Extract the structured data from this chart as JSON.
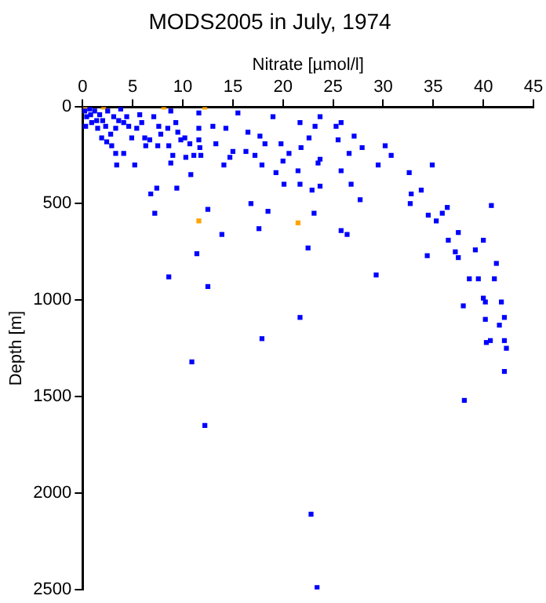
{
  "chart_data": {
    "type": "scatter",
    "title": "MODS2005 in July, 1974",
    "xlabel": "Nitrate [µmol/l]",
    "ylabel": "Depth [m]",
    "xlim": [
      0,
      45
    ],
    "xticks": [
      0,
      5,
      10,
      15,
      20,
      25,
      30,
      35,
      40,
      45
    ],
    "ylim": [
      2500,
      0
    ],
    "yticks": [
      0,
      500,
      1000,
      1500,
      2000,
      2500
    ],
    "grid": false,
    "legend": false,
    "marker": "square",
    "series": [
      {
        "color": "#0000ff",
        "x": [
          0.2,
          0.4,
          0.7,
          0.9,
          1.2,
          1.5,
          1.7,
          2.0,
          2.3,
          2.5,
          2.8,
          3.1,
          3.3,
          3.6,
          3.8,
          4.1,
          4.4,
          4.6,
          0.3,
          0.8,
          1.4,
          1.9,
          2.4,
          2.9,
          3.3,
          3.4,
          4.1,
          5.2,
          4.9,
          5.4,
          5.7,
          5.9,
          6.2,
          6.3,
          6.7,
          7.1,
          7.6,
          7.5,
          7.8,
          8.5,
          8.8,
          8.6,
          8.8,
          9.0,
          9.3,
          9.5,
          9.8,
          10.2,
          10.3,
          10.7,
          10.8,
          11.1,
          11.6,
          11.6,
          11.7,
          11.8,
          11.6,
          13.0,
          13.3,
          14.1,
          14.3,
          14.7,
          15.0,
          15.5,
          16.3,
          16.5,
          17.2,
          17.7,
          17.9,
          18.2,
          19.0,
          19.3,
          19.8,
          20.1,
          20.0,
          20.6,
          21.7,
          21.8,
          21.7,
          21.5,
          22.6,
          22.9,
          6.8,
          7.4,
          9.4,
          7.2,
          12.5,
          13.9,
          16.8,
          18.5,
          17.6,
          11.4,
          8.6,
          12.5,
          22.5,
          21.7,
          17.9,
          23.2,
          23.7,
          25.3,
          25.8,
          25.5,
          27.1,
          27.9,
          30.2,
          30.8,
          23.5,
          23.7,
          25.8,
          26.6,
          29.5,
          32.6,
          34.9,
          23.7,
          26.8,
          27.7,
          32.8,
          33.8,
          32.7,
          23.1,
          25.8,
          26.4,
          36.4,
          35.9,
          34.5,
          35.3,
          37.5,
          40.8,
          36.5,
          40.0,
          37.2,
          37.5,
          39.2,
          34.4,
          41.3,
          29.3,
          38.6,
          39.5,
          41.1,
          38.0,
          40.0,
          40.2,
          41.8,
          40.2,
          42.1,
          41.6,
          10.9,
          12.2,
          22.8,
          40.3,
          40.7,
          42.1,
          42.3,
          42.1,
          38.1,
          23.4
        ],
        "values": [
          20,
          50,
          10,
          80,
          20,
          110,
          40,
          70,
          100,
          20,
          140,
          50,
          110,
          70,
          10,
          80,
          50,
          100,
          100,
          40,
          70,
          160,
          180,
          200,
          240,
          300,
          240,
          300,
          160,
          110,
          40,
          80,
          160,
          200,
          170,
          50,
          100,
          200,
          140,
          110,
          20,
          200,
          290,
          250,
          80,
          130,
          170,
          160,
          260,
          190,
          350,
          250,
          30,
          170,
          210,
          250,
          110,
          100,
          190,
          300,
          110,
          260,
          230,
          30,
          230,
          130,
          250,
          150,
          300,
          190,
          50,
          340,
          190,
          400,
          280,
          240,
          80,
          210,
          400,
          330,
          160,
          430,
          450,
          420,
          420,
          550,
          530,
          660,
          500,
          540,
          630,
          760,
          880,
          930,
          730,
          1090,
          1200,
          100,
          50,
          100,
          80,
          170,
          150,
          210,
          200,
          250,
          290,
          270,
          330,
          240,
          300,
          340,
          300,
          410,
          400,
          480,
          450,
          430,
          500,
          550,
          640,
          660,
          520,
          550,
          560,
          590,
          650,
          510,
          690,
          690,
          750,
          780,
          740,
          770,
          810,
          870,
          890,
          890,
          890,
          1030,
          990,
          1010,
          1010,
          1100,
          1090,
          1130,
          1320,
          1650,
          2110,
          1220,
          1210,
          1210,
          1250,
          1370,
          1520,
          2490
        ]
      },
      {
        "color": "#ffa500",
        "x": [
          0.3,
          2.1,
          8.1,
          12.2,
          11.6,
          21.5
        ],
        "values": [
          0,
          0,
          0,
          0,
          590,
          600
        ]
      }
    ]
  }
}
